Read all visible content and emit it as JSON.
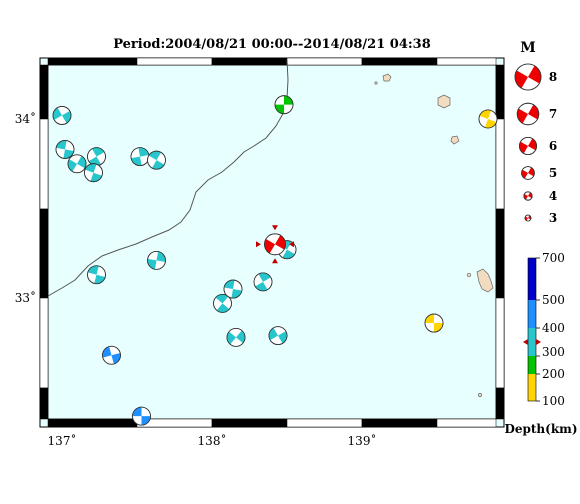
{
  "title": "Period:2004/08/21 00:00--2014/08/21 04:38",
  "map": {
    "lat_labels": [
      {
        "value": 34,
        "text": "34˚"
      },
      {
        "value": 33,
        "text": "33˚"
      }
    ],
    "lon_labels": [
      {
        "value": 137,
        "text": "137˚"
      },
      {
        "value": 138,
        "text": "138˚"
      },
      {
        "value": 139,
        "text": "139˚"
      }
    ],
    "colors": {
      "ocean": "#e8ffff",
      "land": "#f2dcc0",
      "coast": "#666666",
      "frame": "#000000"
    }
  },
  "depth_classes": [
    {
      "color": "#ffd400"
    },
    {
      "color": "#00c400"
    },
    {
      "color": "#26c6cc"
    },
    {
      "color": "#1e90ff"
    },
    {
      "color": "#0000c8"
    }
  ],
  "earthquakes": [
    {
      "lon": 137.0,
      "lat": 34.02,
      "class": 2,
      "rot": -30
    },
    {
      "lon": 137.02,
      "lat": 33.83,
      "class": 2,
      "rot": 10
    },
    {
      "lon": 137.1,
      "lat": 33.75,
      "class": 2,
      "rot": 120
    },
    {
      "lon": 137.23,
      "lat": 33.79,
      "class": 2,
      "rot": 60
    },
    {
      "lon": 137.21,
      "lat": 33.7,
      "class": 2,
      "rot": 20
    },
    {
      "lon": 137.52,
      "lat": 33.79,
      "class": 2,
      "rot": 80
    },
    {
      "lon": 137.63,
      "lat": 33.77,
      "class": 2,
      "rot": 30
    },
    {
      "lon": 138.48,
      "lat": 34.08,
      "class": 1,
      "rot": 90
    },
    {
      "lon": 137.23,
      "lat": 33.13,
      "class": 2,
      "rot": 15
    },
    {
      "lon": 137.63,
      "lat": 33.21,
      "class": 2,
      "rot": 100
    },
    {
      "lon": 138.07,
      "lat": 32.97,
      "class": 2,
      "rot": 40
    },
    {
      "lon": 138.14,
      "lat": 33.05,
      "class": 2,
      "rot": 10
    },
    {
      "lon": 138.34,
      "lat": 33.09,
      "class": 2,
      "rot": 60
    },
    {
      "lon": 138.5,
      "lat": 33.27,
      "class": 2,
      "rot": 30
    },
    {
      "lon": 138.16,
      "lat": 32.78,
      "class": 2,
      "rot": 130
    },
    {
      "lon": 138.44,
      "lat": 32.79,
      "class": 2,
      "rot": 150
    },
    {
      "lon": 137.33,
      "lat": 32.68,
      "class": 3,
      "rot": -15
    },
    {
      "lon": 137.53,
      "lat": 32.34,
      "class": 3,
      "rot": 0
    },
    {
      "lon": 139.48,
      "lat": 32.86,
      "class": 0,
      "rot": 0
    },
    {
      "lon": 139.84,
      "lat": 34.0,
      "class": 0,
      "rot": 20
    }
  ],
  "mainshock": {
    "lon": 138.42,
    "lat": 33.3,
    "mag": 5.0,
    "rot": -60
  },
  "legend": {
    "magnitude_title": "M",
    "magnitudes": [
      {
        "m": 8,
        "label": "8"
      },
      {
        "m": 7,
        "label": "7"
      },
      {
        "m": 6,
        "label": "6"
      },
      {
        "m": 5,
        "label": "5"
      },
      {
        "m": 4,
        "label": "4"
      },
      {
        "m": 3,
        "label": "3"
      }
    ],
    "depth_ticks": [
      "700",
      "500",
      "400",
      "300",
      "200",
      "100"
    ],
    "depth_label": "Depth(km)",
    "mainshock_depth_km": 320
  }
}
